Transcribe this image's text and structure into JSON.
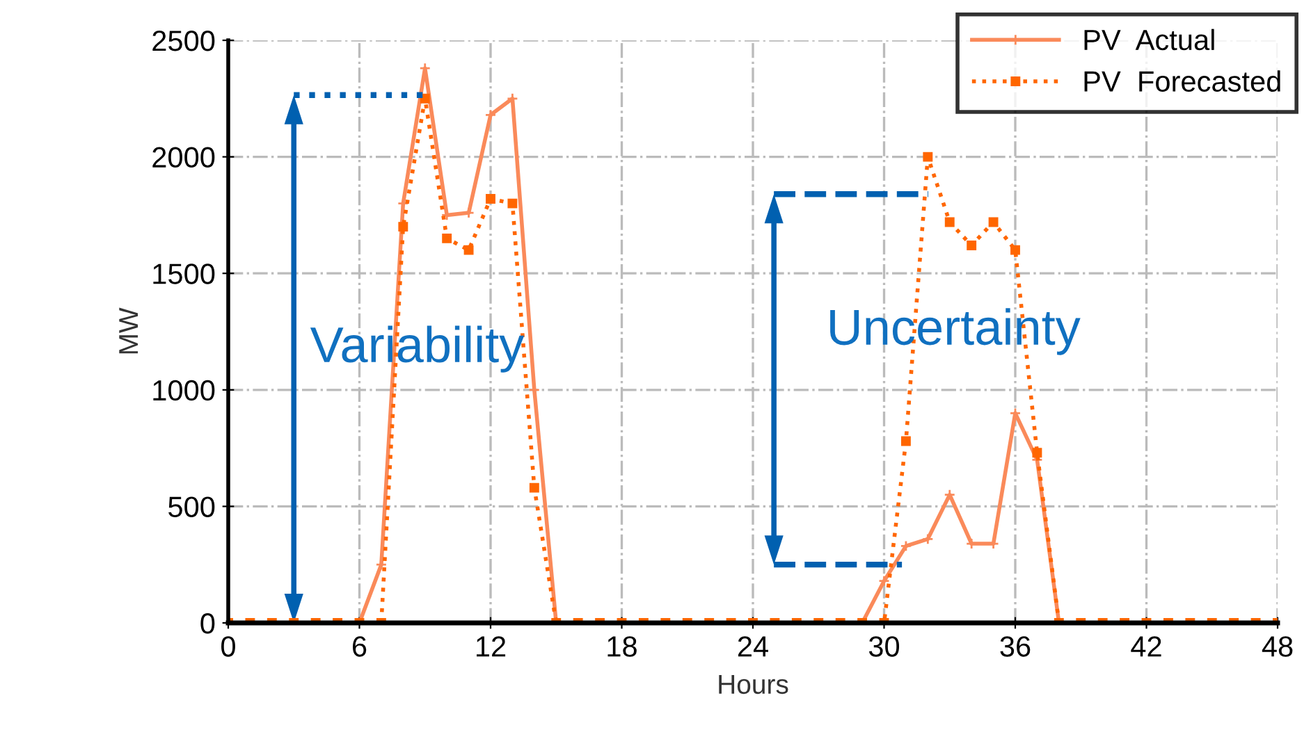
{
  "chart_data": {
    "type": "line",
    "xlabel": "Hours",
    "ylabel": "MW",
    "xlim": [
      0,
      48
    ],
    "xticks": [
      0,
      6,
      12,
      18,
      24,
      30,
      36,
      42,
      48
    ],
    "ylim": [
      0,
      2500
    ],
    "yticks": [
      0,
      500,
      1000,
      1500,
      2000,
      2500
    ],
    "grid": true,
    "legend": "top right",
    "x": [
      0,
      1,
      2,
      3,
      4,
      5,
      6,
      7,
      8,
      9,
      10,
      11,
      12,
      13,
      14,
      15,
      16,
      17,
      18,
      19,
      20,
      21,
      22,
      23,
      24,
      25,
      26,
      27,
      28,
      29,
      30,
      31,
      32,
      33,
      34,
      35,
      36,
      37,
      38,
      39,
      40,
      41,
      42,
      43,
      44,
      45,
      46,
      47,
      48
    ],
    "series": [
      {
        "name": "PV  Actual",
        "color": "#fa8a5a",
        "marker": "cross",
        "line_style": "solid",
        "values": [
          0,
          0,
          0,
          0,
          0,
          0,
          0,
          250,
          1800,
          2380,
          1750,
          1760,
          2180,
          2250,
          1000,
          0,
          0,
          0,
          0,
          0,
          0,
          0,
          0,
          0,
          0,
          0,
          0,
          0,
          0,
          0,
          180,
          330,
          360,
          550,
          340,
          340,
          900,
          700,
          0,
          0,
          0,
          0,
          0,
          0,
          0,
          0,
          0,
          0,
          0
        ]
      },
      {
        "name": "PV  Forecasted",
        "color": "#ff6600",
        "marker": "square",
        "line_style": "dotted",
        "values": [
          0,
          0,
          0,
          0,
          0,
          0,
          0,
          0,
          1700,
          2250,
          1650,
          1600,
          1820,
          1800,
          580,
          0,
          0,
          0,
          0,
          0,
          0,
          0,
          0,
          0,
          0,
          0,
          0,
          0,
          0,
          0,
          0,
          780,
          2000,
          1720,
          1620,
          1720,
          1600,
          730,
          0,
          0,
          0,
          0,
          0,
          0,
          0,
          0,
          0,
          0,
          0
        ]
      }
    ],
    "annotations": [
      "Variability",
      "Uncertainty"
    ]
  }
}
